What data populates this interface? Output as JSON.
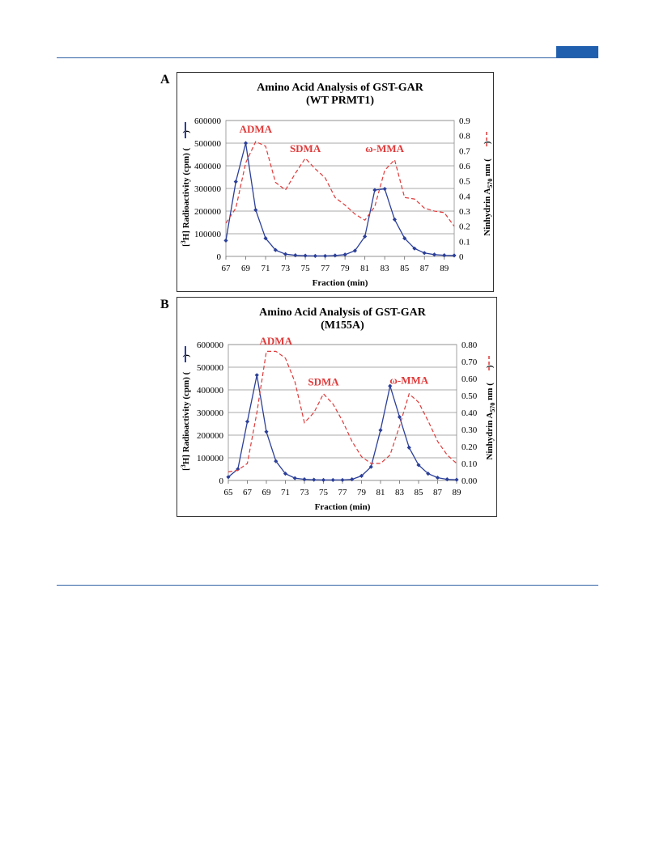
{
  "page": {
    "accent_color": "#1f5fae"
  },
  "panels": [
    {
      "letter": "A",
      "title_line1": "Amino Acid Analysis of GST-GAR",
      "title_line2": "(WT PRMT1)",
      "xlabel": "Fraction (min)",
      "ylabel_left_pre": "[",
      "ylabel_left_sup": "3",
      "ylabel_left_post": "H] Radioactivity (cpm)  (",
      "ylabel_left_end": ")",
      "ylabel_right_pre": "Ninhydrin A",
      "ylabel_right_sub": "570",
      "ylabel_right_post": " nm  (",
      "ylabel_right_end": ")",
      "annotations": [
        {
          "text": "ADMA",
          "x": 70,
          "y2": 0.82
        },
        {
          "text": "SDMA",
          "x": 75,
          "y2": 0.69
        },
        {
          "text": "ω-MMA",
          "x": 83,
          "y2": 0.69
        }
      ]
    },
    {
      "letter": "B",
      "title_line1": "Amino Acid Analysis of GST-GAR",
      "title_line2": "(M155A)",
      "xlabel": "Fraction (min)",
      "ylabel_left_pre": "[",
      "ylabel_left_sup": "3",
      "ylabel_left_post": "H] Radioactivity (cpm)  (",
      "ylabel_left_end": ")",
      "ylabel_right_pre": "Ninhydrin A",
      "ylabel_right_sub": "570",
      "ylabel_right_post": " nm  (",
      "ylabel_right_end": ")",
      "annotations": [
        {
          "text": "ADMA",
          "x": 70,
          "y2": 0.8
        },
        {
          "text": "SDMA",
          "x": 75,
          "y2": 0.56
        },
        {
          "text": "ω-MMA",
          "x": 84,
          "y2": 0.57
        }
      ]
    }
  ],
  "chart_data": [
    {
      "type": "line",
      "title": "Amino Acid Analysis of GST-GAR (WT PRMT1)",
      "xlabel": "Fraction (min)",
      "ylabel": "[3H] Radioactivity (cpm)",
      "y2label": "Ninhydrin A570 nm",
      "xlim": [
        67,
        90
      ],
      "xticks": [
        67,
        69,
        71,
        73,
        75,
        77,
        79,
        81,
        83,
        85,
        87,
        89
      ],
      "ylim": [
        0,
        600000
      ],
      "yticks": [
        0,
        100000,
        200000,
        300000,
        400000,
        500000,
        600000
      ],
      "y2lim": [
        0,
        0.9
      ],
      "y2ticks": [
        "0",
        "0.1",
        "0.2",
        "0.3",
        "0.4",
        "0.5",
        "0.6",
        "0.7",
        "0.8",
        "0.9"
      ],
      "grid": true,
      "series": [
        {
          "axis": "left",
          "color": "#2b3f99",
          "style": "solid",
          "markers": true,
          "x": [
            67,
            68,
            69,
            70,
            71,
            72,
            73,
            74,
            75,
            76,
            77,
            78,
            79,
            80,
            81,
            82,
            83,
            84,
            85,
            86,
            87,
            88,
            89,
            90
          ],
          "values": [
            70000,
            330000,
            500000,
            205000,
            80000,
            28000,
            10000,
            5000,
            3000,
            2000,
            2000,
            4000,
            8000,
            25000,
            88000,
            293000,
            298000,
            163000,
            80000,
            35000,
            15000,
            8000,
            5000,
            4000
          ]
        },
        {
          "axis": "right",
          "color": "#e03a3a",
          "style": "dashed",
          "markers": false,
          "x": [
            67,
            68,
            69,
            70,
            71,
            72,
            73,
            74,
            75,
            76,
            77,
            78,
            79,
            80,
            81,
            82,
            83,
            84,
            85,
            86,
            87,
            88,
            89,
            90
          ],
          "values": [
            0.22,
            0.32,
            0.62,
            0.76,
            0.73,
            0.49,
            0.44,
            0.55,
            0.65,
            0.58,
            0.52,
            0.39,
            0.34,
            0.28,
            0.24,
            0.33,
            0.57,
            0.64,
            0.39,
            0.38,
            0.32,
            0.3,
            0.29,
            0.2
          ]
        }
      ]
    },
    {
      "type": "line",
      "title": "Amino Acid Analysis of GST-GAR (M155A)",
      "xlabel": "Fraction (min)",
      "ylabel": "[3H] Radioactivity (cpm)",
      "y2label": "Ninhydrin A570 nm",
      "xlim": [
        65,
        89
      ],
      "xticks": [
        65,
        67,
        69,
        71,
        73,
        75,
        77,
        79,
        81,
        83,
        85,
        87,
        89
      ],
      "ylim": [
        0,
        600000
      ],
      "yticks": [
        0,
        100000,
        200000,
        300000,
        400000,
        500000,
        600000
      ],
      "y2lim": [
        0,
        0.8
      ],
      "y2ticks": [
        "0.00",
        "0.10",
        "0.20",
        "0.30",
        "0.40",
        "0.50",
        "0.60",
        "0.70",
        "0.80"
      ],
      "grid": true,
      "series": [
        {
          "axis": "left",
          "color": "#2b3f99",
          "style": "solid",
          "markers": true,
          "x": [
            65,
            66,
            67,
            68,
            69,
            70,
            71,
            72,
            73,
            74,
            75,
            76,
            77,
            78,
            79,
            80,
            81,
            82,
            83,
            84,
            85,
            86,
            87,
            88,
            89
          ],
          "values": [
            15000,
            50000,
            260000,
            465000,
            215000,
            85000,
            30000,
            10000,
            5000,
            3000,
            2000,
            2000,
            2000,
            5000,
            20000,
            60000,
            222000,
            417000,
            280000,
            145000,
            68000,
            30000,
            12000,
            5000,
            3000
          ]
        },
        {
          "axis": "right",
          "color": "#e03a3a",
          "style": "dashed",
          "markers": false,
          "x": [
            65,
            66,
            67,
            68,
            69,
            70,
            71,
            72,
            73,
            74,
            75,
            76,
            77,
            78,
            79,
            80,
            81,
            82,
            83,
            84,
            85,
            86,
            87,
            88,
            89
          ],
          "values": [
            0.05,
            0.06,
            0.1,
            0.4,
            0.76,
            0.76,
            0.72,
            0.58,
            0.34,
            0.4,
            0.51,
            0.45,
            0.35,
            0.23,
            0.14,
            0.1,
            0.1,
            0.15,
            0.32,
            0.51,
            0.46,
            0.35,
            0.23,
            0.15,
            0.1
          ]
        }
      ]
    }
  ]
}
